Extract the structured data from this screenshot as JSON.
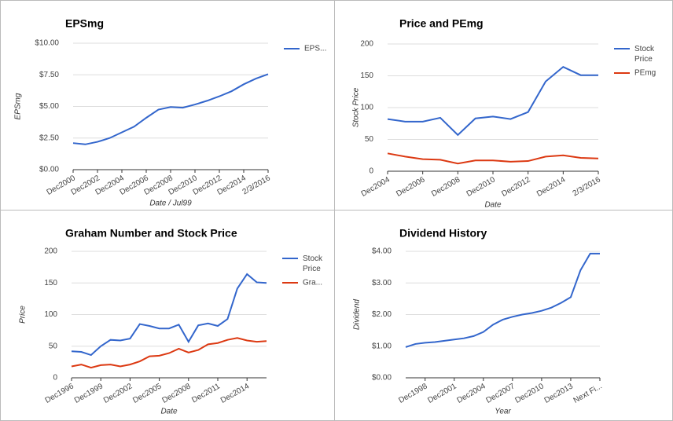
{
  "chart_data": [
    {
      "type": "line",
      "title": "EPSmg",
      "x_label": "Date / Jul99",
      "y_label": "EPSmg",
      "legend": "right",
      "grid": true,
      "categories": [
        "Dec2000",
        null,
        "Dec2002",
        null,
        "Dec2004",
        null,
        "Dec2006",
        null,
        "Dec2008",
        null,
        "Dec2010",
        null,
        "Dec2012",
        null,
        "Dec2014",
        null,
        "2/3/2016"
      ],
      "series": [
        {
          "name": "EPS...",
          "color": "#3366cc",
          "values": [
            2.1,
            2.0,
            2.2,
            2.5,
            2.95,
            3.4,
            4.1,
            4.75,
            4.95,
            4.9,
            5.15,
            5.45,
            5.8,
            6.2,
            6.75,
            7.2,
            7.55
          ]
        }
      ],
      "ylim": [
        0,
        10
      ],
      "yticks": [
        {
          "value": 0,
          "label": "$0.00"
        },
        {
          "value": 2.5,
          "label": "$2.50"
        },
        {
          "value": 5,
          "label": "$5.00"
        },
        {
          "value": 7.5,
          "label": "$7.50"
        },
        {
          "value": 10,
          "label": "$10.00"
        }
      ]
    },
    {
      "type": "line",
      "title": "Price and PEmg",
      "x_label": "Date",
      "y_label": "Stock Price",
      "legend": "right",
      "grid": true,
      "categories": [
        "Dec2004",
        null,
        "Dec2006",
        null,
        "Dec2008",
        null,
        "Dec2010",
        null,
        "Dec2012",
        null,
        "Dec2014",
        null,
        "2/3/2016"
      ],
      "series": [
        {
          "name": "Stock Price",
          "color": "#3366cc",
          "values": [
            82,
            78,
            78,
            84,
            57,
            83,
            86,
            82,
            93,
            141,
            164,
            151,
            151
          ]
        },
        {
          "name": "PEmg",
          "color": "#dc3912",
          "values": [
            28,
            23,
            19,
            18,
            12,
            17,
            17,
            15,
            16,
            23,
            25,
            21,
            20
          ]
        }
      ],
      "ylim": [
        0,
        200
      ],
      "yticks": [
        0,
        50,
        100,
        150,
        200
      ]
    },
    {
      "type": "line",
      "title": "Graham Number and Stock Price",
      "x_label": "Date",
      "y_label": "Price",
      "legend": "right",
      "grid": true,
      "categories": [
        "Dec1996",
        null,
        null,
        "Dec1999",
        null,
        null,
        "Dec2002",
        null,
        null,
        "Dec2005",
        null,
        null,
        "Dec2008",
        null,
        null,
        "Dec2011",
        null,
        null,
        "Dec2014",
        null,
        null
      ],
      "series": [
        {
          "name": "Stock Price",
          "color": "#3366cc",
          "values": [
            42,
            41,
            36,
            50,
            60,
            59,
            62,
            85,
            82,
            78,
            78,
            84,
            57,
            83,
            86,
            82,
            93,
            141,
            164,
            151,
            150
          ]
        },
        {
          "name": "Gra...",
          "color": "#dc3912",
          "values": [
            18,
            21,
            16,
            20,
            21,
            18,
            21,
            26,
            34,
            35,
            39,
            46,
            40,
            44,
            53,
            55,
            60,
            63,
            59,
            57,
            58
          ]
        }
      ],
      "ylim": [
        0,
        200
      ],
      "yticks": [
        0,
        50,
        100,
        150,
        200
      ]
    },
    {
      "type": "line",
      "title": "Dividend History",
      "x_label": "Year",
      "y_label": "Dividend",
      "grid": true,
      "categories": [
        null,
        null,
        "Dec1998",
        null,
        null,
        "Dec2001",
        null,
        null,
        "Dec2004",
        null,
        null,
        "Dec2007",
        null,
        null,
        "Dec2010",
        null,
        null,
        "Dec2013",
        null,
        null,
        "Next Fi..."
      ],
      "series": [
        {
          "color": "#3366cc",
          "values": [
            0.97,
            1.07,
            1.11,
            1.13,
            1.17,
            1.21,
            1.25,
            1.32,
            1.45,
            1.68,
            1.84,
            1.93,
            2.0,
            2.05,
            2.12,
            2.22,
            2.37,
            2.55,
            3.4,
            3.93,
            3.93
          ]
        }
      ],
      "ylim": [
        0,
        4
      ],
      "yticks": [
        {
          "value": 0,
          "label": "$0.00"
        },
        {
          "value": 1,
          "label": "$1.00"
        },
        {
          "value": 2,
          "label": "$2.00"
        },
        {
          "value": 3,
          "label": "$3.00"
        },
        {
          "value": 4,
          "label": "$4.00"
        }
      ]
    }
  ]
}
